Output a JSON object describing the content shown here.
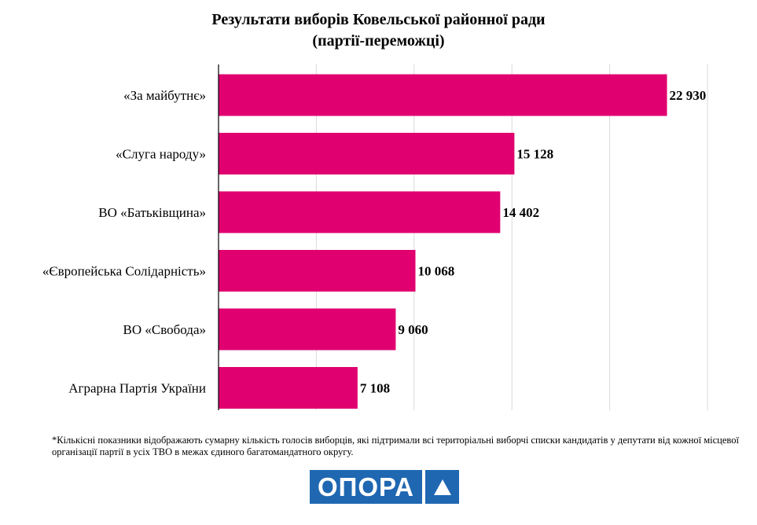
{
  "chart_data": {
    "type": "bar",
    "orientation": "horizontal",
    "title_line1": "Результати виборів Ковельської районної ради",
    "title_line2": "(партії-переможці)",
    "categories": [
      "«За майбутнє»",
      "«Слуга народу»",
      "ВО «Батьківщина»",
      "«Європейська Солідарність»",
      "ВО «Свобода»",
      "Аграрна Партія України"
    ],
    "values": [
      22930,
      15128,
      14402,
      10068,
      9060,
      7108
    ],
    "value_labels": [
      "22 930",
      "15 128",
      "14 402",
      "10 068",
      "9 060",
      "7 108"
    ],
    "xlim": [
      0,
      25000
    ],
    "grid_step": 5000,
    "grid": true,
    "bar_color": "#e0006f",
    "xlabel": "",
    "ylabel": ""
  },
  "footnote": "*Кількісні показники відображають сумарну кількість голосів виборців, які підтримали всі територіальні виборчі списки кандидатів у депутати від кожної місцевої організації партії в усіх ТВО в межах єдиного багатомандатного округу.",
  "logo": {
    "text": "ОПОРА",
    "color": "#1f67b1",
    "icon": "triangle-icon"
  }
}
